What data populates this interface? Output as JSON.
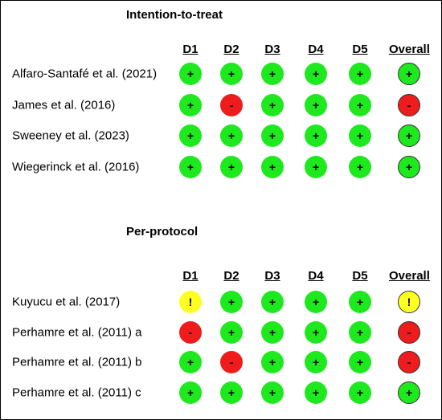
{
  "colors": {
    "low": "#1ee81e",
    "high": "#ee1c1c",
    "some": "#ffff22"
  },
  "symbols": {
    "low": "+",
    "high": "-",
    "some": "!"
  },
  "columns": [
    "D1",
    "D2",
    "D3",
    "D4",
    "D5",
    "Overall"
  ],
  "sections": [
    {
      "title": "Intention-to-treat",
      "rows": [
        {
          "study": "Alfaro-Santafé et al. (2021)",
          "judgements": [
            "low",
            "low",
            "low",
            "low",
            "low",
            "low"
          ]
        },
        {
          "study": "James et al. (2016)",
          "judgements": [
            "low",
            "high",
            "low",
            "low",
            "low",
            "high"
          ]
        },
        {
          "study": "Sweeney et al. (2023)",
          "judgements": [
            "low",
            "low",
            "low",
            "low",
            "low",
            "low"
          ]
        },
        {
          "study": "Wiegerinck et al. (2016)",
          "judgements": [
            "low",
            "low",
            "low",
            "low",
            "low",
            "low"
          ]
        }
      ]
    },
    {
      "title": "Per-protocol",
      "rows": [
        {
          "study": "Kuyucu et al. (2017)",
          "judgements": [
            "some",
            "low",
            "low",
            "low",
            "low",
            "some"
          ]
        },
        {
          "study": "Perhamre et al. (2011) a",
          "judgements": [
            "high",
            "low",
            "low",
            "low",
            "low",
            "high"
          ]
        },
        {
          "study": "Perhamre et al. (2011) b",
          "judgements": [
            "low",
            "high",
            "low",
            "low",
            "low",
            "high"
          ]
        },
        {
          "study": "Perhamre et al. (2011) c",
          "judgements": [
            "low",
            "low",
            "low",
            "low",
            "low",
            "low"
          ]
        }
      ]
    }
  ]
}
